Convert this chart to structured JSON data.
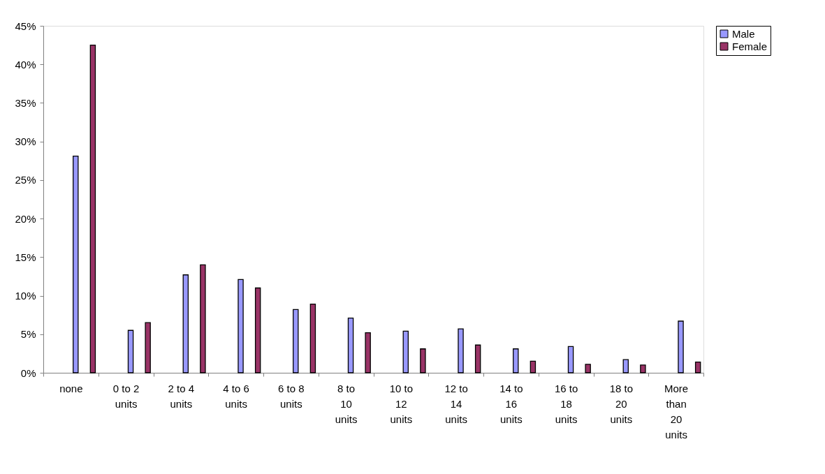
{
  "chart_data": {
    "type": "bar",
    "categories": [
      "none",
      "0 to 2 units",
      "2 to 4 units",
      "4 to 6 units",
      "6 to 8 units",
      "8 to 10 units",
      "10 to 12 units",
      "12 to 14 units",
      "14 to 16 units",
      "16 to 18 units",
      "18 to 20 units",
      "More than 20 units"
    ],
    "series": [
      {
        "name": "Male",
        "color": "#9999ff",
        "values": [
          28.1,
          5.5,
          12.7,
          12.1,
          8.2,
          7.1,
          5.4,
          5.7,
          3.1,
          3.4,
          1.7,
          6.7
        ]
      },
      {
        "name": "Female",
        "color": "#993366",
        "values": [
          42.5,
          6.5,
          14.0,
          11.0,
          8.9,
          5.2,
          3.1,
          3.6,
          1.5,
          1.1,
          1.0,
          1.4
        ]
      }
    ],
    "ylim": [
      0,
      45
    ],
    "yticks": [
      {
        "value": 0,
        "label": "0%"
      },
      {
        "value": 5,
        "label": "5%"
      },
      {
        "value": 10,
        "label": "10%"
      },
      {
        "value": 15,
        "label": "15%"
      },
      {
        "value": 20,
        "label": "20%"
      },
      {
        "value": 25,
        "label": "25%"
      },
      {
        "value": 30,
        "label": "30%"
      },
      {
        "value": 35,
        "label": "35%"
      },
      {
        "value": 40,
        "label": "40%"
      },
      {
        "value": 45,
        "label": "45%"
      }
    ],
    "grid": false,
    "legend": "right"
  }
}
